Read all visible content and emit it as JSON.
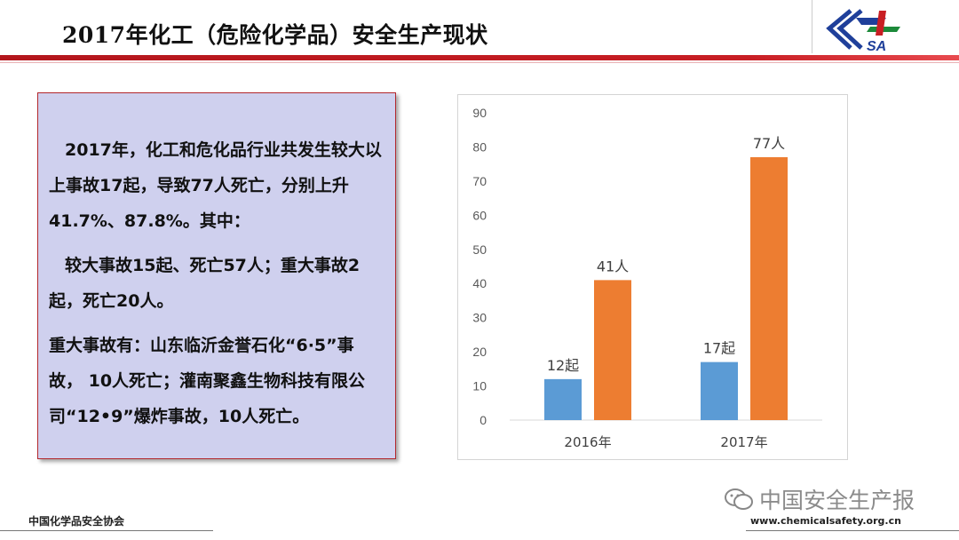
{
  "header": {
    "title": "2017年化工（危险化学品）安全生产现状",
    "logo_text": "SA"
  },
  "text_box": {
    "paragraphs": [
      "2017年，化工和危化品行业共发生较大以上事故17起，导致77人死亡，分别上升41.7%、87.8%。其中：",
      "较大事故15起、死亡57人；重大事故2起，死亡20人。",
      "重大事故有：山东临沂金誉石化“6·5”事故， 10人死亡；灌南聚鑫生物科技有限公司“12•9”爆炸事故，10人死亡。"
    ]
  },
  "chart_data": {
    "type": "bar",
    "categories": [
      "2016年",
      "2017年"
    ],
    "series": [
      {
        "values": [
          12,
          17
        ],
        "labels": [
          "12起",
          "17起"
        ],
        "color": "#5b9bd5"
      },
      {
        "values": [
          41,
          77
        ],
        "labels": [
          "41人",
          "77人"
        ],
        "color": "#ed7d31"
      }
    ],
    "ylim": [
      0,
      90
    ],
    "yticks": [
      "0",
      "10",
      "20",
      "30",
      "40",
      "50",
      "60",
      "70",
      "80",
      "90"
    ],
    "grid": false,
    "legend": "none"
  },
  "footer": {
    "left": "中国化学品安全协会",
    "url": "www.chemicalsafety.org.cn",
    "watermark": "中国安全生产报"
  },
  "colors": {
    "accent_red": "#c81e24",
    "box_fill": "#cfd0ee",
    "logo_blue": "#1f3f9a",
    "logo_green": "#1c8a3a"
  }
}
